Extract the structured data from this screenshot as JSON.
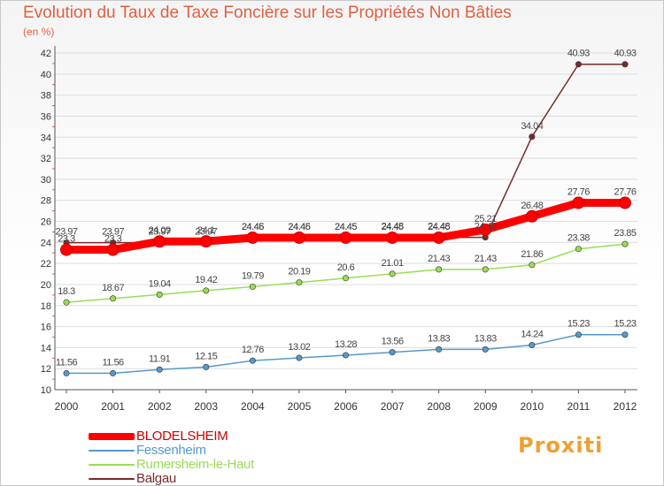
{
  "chart_data": {
    "type": "line",
    "title": "Evolution du Taux de Taxe Foncière sur les Propriétés Non Bâties",
    "ylabel": "(en %)",
    "xlabel": "",
    "categories": [
      "2000",
      "2001",
      "2002",
      "2003",
      "2004",
      "2005",
      "2006",
      "2007",
      "2008",
      "2009",
      "2010",
      "2011",
      "2012"
    ],
    "ylim": [
      10,
      42
    ],
    "yticks": [
      10,
      12,
      14,
      16,
      18,
      20,
      22,
      24,
      26,
      28,
      30,
      32,
      34,
      36,
      38,
      40,
      42
    ],
    "grid": "horizontal",
    "legend_position": "bottom-left",
    "series": [
      {
        "name": "Balgau",
        "color": "#7a2a2a",
        "values": [
          23.97,
          23.97,
          23.97,
          23.97,
          24.46,
          24.46,
          24.45,
          24.48,
          24.48,
          24.48,
          34.04,
          40.93,
          40.93
        ],
        "labels": [
          "23.97",
          "23.97",
          "23.97",
          "23.97",
          "24.46",
          "24.46",
          "24.45",
          "24.48",
          "24.48",
          "24.48",
          "34.04",
          "40.93",
          "40.93"
        ]
      },
      {
        "name": "BLODELSHEIM",
        "color": "#ff0000",
        "values": [
          23.3,
          23.3,
          24.09,
          24.1,
          24.45,
          24.45,
          24.45,
          24.45,
          24.45,
          25.21,
          26.48,
          27.76,
          27.76
        ],
        "labels": [
          "23.3",
          "23.3",
          "24.09",
          "24.1",
          "24.45",
          "24.45",
          "24.45",
          "24.45",
          "24.45",
          "25.21",
          "26.48",
          "27.76",
          "27.76"
        ]
      },
      {
        "name": "Rumersheim-le-Haut",
        "color": "#99dd55",
        "values": [
          18.3,
          18.67,
          19.04,
          19.42,
          19.79,
          20.19,
          20.6,
          21.01,
          21.43,
          21.43,
          21.86,
          23.38,
          23.85
        ],
        "labels": [
          "18.3",
          "18.67",
          "19.04",
          "19.42",
          "19.79",
          "20.19",
          "20.6",
          "21.01",
          "21.43",
          "21.43",
          "21.86",
          "23.38",
          "23.85"
        ]
      },
      {
        "name": "Fessenheim",
        "color": "#5599cc",
        "values": [
          11.56,
          11.56,
          11.91,
          12.15,
          12.76,
          13.02,
          13.28,
          13.56,
          13.83,
          13.83,
          14.24,
          15.23,
          15.23
        ],
        "labels": [
          "11.56",
          "11.56",
          "11.91",
          "12.15",
          "12.76",
          "13.02",
          "13.28",
          "13.56",
          "13.83",
          "13.83",
          "14.24",
          "15.23",
          "15.23"
        ]
      }
    ],
    "legend": [
      "BLODELSHEIM",
      "Fessenheim",
      "Rumersheim-le-Haut",
      "Balgau"
    ]
  },
  "colors": {
    "title": "#e06040",
    "axis": "#555555",
    "grid": "#dddddd"
  },
  "logo_text": "Proxiti"
}
